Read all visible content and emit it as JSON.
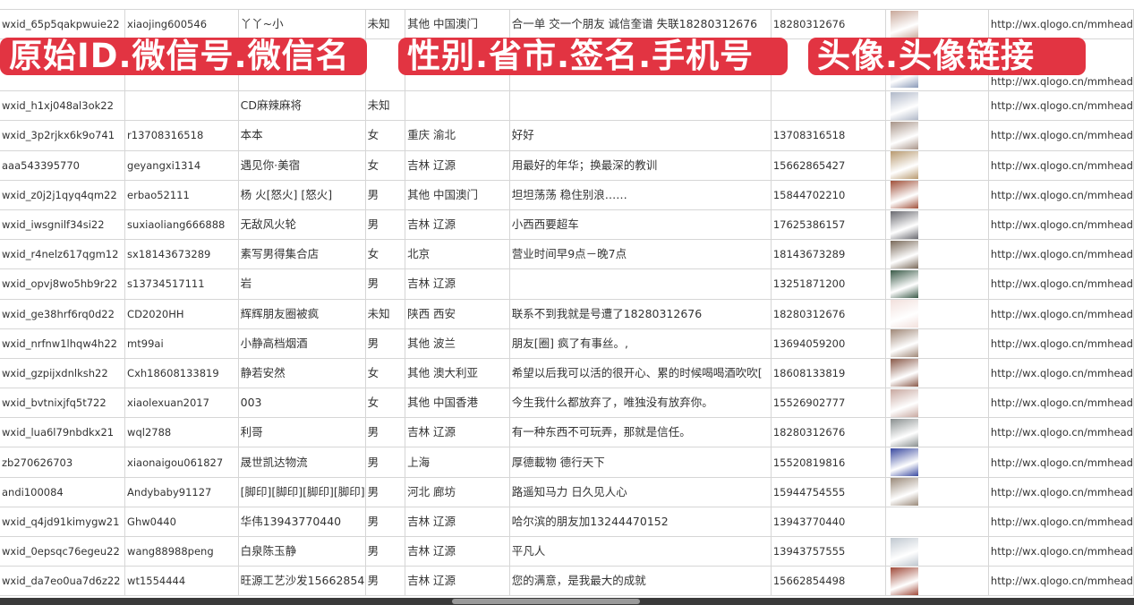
{
  "overlays": {
    "label1": "原始ID.微信号.微信名",
    "label2": "性别.省市.签名.手机号",
    "label3": "头像.头像链接"
  },
  "colors": {
    "overlay": "#e23442",
    "grid": "#d6d6d6"
  },
  "rows": [
    {
      "id": "wxid_65p5qakpwuie22",
      "wechat": "xiaojing600546",
      "name": "丫丫~小",
      "gender": "未知",
      "region": "其他 中国澳门",
      "sig": "合一单 交一个朋友 诚信奎谱 失联18280312676",
      "phone": "18280312676",
      "url": "http://wx.qlogo.cn/mmhead",
      "av": "#c9a89a"
    },
    {
      "id": "",
      "wechat": "",
      "name": "",
      "gender": "",
      "region": "",
      "sig": "",
      "phone": "",
      "url": "http://wx.qlogo.cn/mmhead",
      "av": "#8a9ab8"
    },
    {
      "id": "wxid_h1xj048al3ok22",
      "wechat": "",
      "name": "CD麻辣麻将",
      "gender": "未知",
      "region": "",
      "sig": "",
      "phone": "",
      "url": "http://wx.qlogo.cn/mmhead",
      "av": "#b0b8c8"
    },
    {
      "id": "wxid_3p2rjkx6k9o741",
      "wechat": "r13708316518",
      "name": "本本",
      "gender": "女",
      "region": "重庆 渝北",
      "sig": "好好",
      "phone": "13708316518",
      "url": "http://wx.qlogo.cn/mmhead",
      "av": "#a89488"
    },
    {
      "id": "aaa543395770",
      "wechat": "geyangxi1314",
      "name": "遇见你·美宿",
      "gender": "女",
      "region": "吉林 辽源",
      "sig": "用最好的年华；换最深的教训",
      "phone": "15662865427",
      "url": "http://wx.qlogo.cn/mmhead",
      "av": "#b89a70"
    },
    {
      "id": "wxid_z0j2j1qyq4qm22",
      "wechat": "erbao52111",
      "name": "杨 火[怒火] [怒火]",
      "gender": "男",
      "region": "其他 中国澳门",
      "sig": "坦坦荡荡 稳住别浪……",
      "phone": "15844702210",
      "url": "http://wx.qlogo.cn/mmhead",
      "av": "#a0503a"
    },
    {
      "id": "wxid_iwsgnilf34si22",
      "wechat": "suxiaoliang666888",
      "name": "无敌风火轮",
      "gender": "男",
      "region": "吉林 辽源",
      "sig": "小西西要超车",
      "phone": "17625386157",
      "url": "http://wx.qlogo.cn/mmhead",
      "av": "#6a6a70"
    },
    {
      "id": "wxid_r4nelz617qgm12",
      "wechat": "sx18143673289",
      "name": "素写男得集合店",
      "gender": "女",
      "region": "北京",
      "sig": "营业时间早9点－晚7点",
      "phone": "18143673289",
      "url": "http://wx.qlogo.cn/mmhead",
      "av": "#7a6a5a"
    },
    {
      "id": "wxid_opvj8wo5hb9r22",
      "wechat": "s13734517111",
      "name": "岩",
      "gender": "男",
      "region": "吉林 辽源",
      "sig": "",
      "phone": "13251871200",
      "url": "http://wx.qlogo.cn/mmhead",
      "av": "#3a5a48"
    },
    {
      "id": "wxid_ge38hrf6rq0d22",
      "wechat": "CD2020HH",
      "name": "辉辉朋友圈被疯",
      "gender": "未知",
      "region": "陕西 西安",
      "sig": "联系不到我就是号遭了18280312676",
      "phone": "18280312676",
      "url": "http://wx.qlogo.cn/mmhead",
      "av": "#f2e0dc"
    },
    {
      "id": "wxid_nrfnw1lhqw4h22",
      "wechat": "mt99ai",
      "name": "小静高档烟酒",
      "gender": "男",
      "region": "其他 波兰",
      "sig": "朋友[圈] 疯了有事丝。,",
      "phone": "13694059200",
      "url": "http://wx.qlogo.cn/mmhead",
      "av": "#a08878"
    },
    {
      "id": "wxid_gzpijxdnlksh22",
      "wechat": "Cxh18608133819",
      "name": "静若安然",
      "gender": "女",
      "region": "其他 澳大利亚",
      "sig": "希望以后我可以活的很开心、累的时候喝喝酒吹吹[",
      "phone": "18608133819",
      "url": "http://wx.qlogo.cn/mmhead",
      "av": "#8a5a4a"
    },
    {
      "id": "wxid_bvtnixjfq5t722",
      "wechat": "xiaolexuan2017",
      "name": "003",
      "gender": "女",
      "region": "其他 中国香港",
      "sig": "今生我什么都放弃了，唯独没有放弃你。",
      "phone": "15526902777",
      "url": "http://wx.qlogo.cn/mmhead",
      "av": "#c8a8a0"
    },
    {
      "id": "wxid_lua6l79nbdkx21",
      "wechat": "wql2788",
      "name": "利哥",
      "gender": "男",
      "region": "吉林 辽源",
      "sig": "有一种东西不可玩弄，那就是信任。",
      "phone": "18280312676",
      "url": "http://wx.qlogo.cn/mmhead",
      "av": "#8a9090"
    },
    {
      "id": "zb270626703",
      "wechat": "xiaonaigou061827",
      "name": "晟世凯达物流",
      "gender": "男",
      "region": "上海",
      "sig": "厚德載物 德行天下",
      "phone": "15520819816",
      "url": "http://wx.qlogo.cn/mmhead",
      "av": "#3a4aa0"
    },
    {
      "id": "andi100084",
      "wechat": "Andybaby91127",
      "name": "[脚印][脚印][脚印][脚印]",
      "gender": "男",
      "region": "河北 廊坊",
      "sig": "路遥知马力 日久见人心",
      "phone": "15944754555",
      "url": "http://wx.qlogo.cn/mmhead",
      "av": "#9a8a7a"
    },
    {
      "id": "wxid_q4jd91kimygw21",
      "wechat": "Ghw0440",
      "name": "华伟13943770440",
      "gender": "男",
      "region": "吉林 辽源",
      "sig": "哈尔滨的朋友加13244470152",
      "phone": "13943770440",
      "url": "http://wx.qlogo.cn/mmhead",
      "av": "#ffffff"
    },
    {
      "id": "wxid_0epsqc76egeu22",
      "wechat": "wang88988peng",
      "name": "白泉陈玉静",
      "gender": "男",
      "region": "吉林 辽源",
      "sig": "平凡人",
      "phone": "13943757555",
      "url": "http://wx.qlogo.cn/mmhead",
      "av": "#c0c8d0"
    },
    {
      "id": "wxid_da7eo0ua7d6z22",
      "wechat": "wt1554444",
      "name": "旺源工艺沙发15662854",
      "gender": "男",
      "region": "吉林 辽源",
      "sig": "您的满意，是我最大的成就",
      "phone": "15662854498",
      "url": "http://wx.qlogo.cn/mmhead",
      "av": "#a04a3a"
    }
  ]
}
